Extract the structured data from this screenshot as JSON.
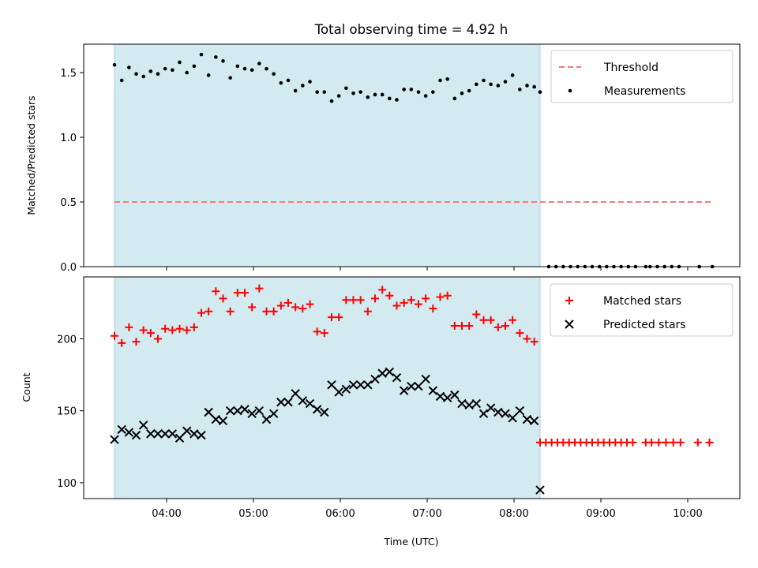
{
  "chart_data": [
    {
      "type": "scatter",
      "title": "Total observing time = 4.92 h",
      "xlabel": "",
      "ylabel": "Matched/Predicted stars",
      "ylim": [
        0,
        1.72
      ],
      "yticks": [
        "0.0",
        "0.5",
        "1.0",
        "1.5"
      ],
      "shaded_interval": [
        "03:24",
        "08:18"
      ],
      "shade_color": "#d3eaf0",
      "legend_position": "top-right",
      "threshold": {
        "name": "Threshold",
        "value": 0.5,
        "color": "#f47a7a",
        "x_range": [
          "03:24",
          "10:18"
        ]
      },
      "series": [
        {
          "name": "Measurements",
          "color": "#000000",
          "marker": "dot",
          "points": [
            [
              "03:24",
              1.56
            ],
            [
              "03:29",
              1.44
            ],
            [
              "03:34",
              1.54
            ],
            [
              "03:39",
              1.49
            ],
            [
              "03:44",
              1.47
            ],
            [
              "03:49",
              1.51
            ],
            [
              "03:54",
              1.49
            ],
            [
              "03:59",
              1.53
            ],
            [
              "04:04",
              1.52
            ],
            [
              "04:09",
              1.58
            ],
            [
              "04:14",
              1.5
            ],
            [
              "04:19",
              1.55
            ],
            [
              "04:24",
              1.64
            ],
            [
              "04:29",
              1.48
            ],
            [
              "04:34",
              1.62
            ],
            [
              "04:39",
              1.59
            ],
            [
              "04:44",
              1.46
            ],
            [
              "04:49",
              1.55
            ],
            [
              "04:54",
              1.53
            ],
            [
              "04:59",
              1.52
            ],
            [
              "05:04",
              1.57
            ],
            [
              "05:09",
              1.53
            ],
            [
              "05:14",
              1.49
            ],
            [
              "05:19",
              1.42
            ],
            [
              "05:24",
              1.44
            ],
            [
              "05:29",
              1.36
            ],
            [
              "05:34",
              1.4
            ],
            [
              "05:39",
              1.43
            ],
            [
              "05:44",
              1.35
            ],
            [
              "05:49",
              1.35
            ],
            [
              "05:54",
              1.28
            ],
            [
              "05:59",
              1.32
            ],
            [
              "06:04",
              1.38
            ],
            [
              "06:09",
              1.34
            ],
            [
              "06:14",
              1.35
            ],
            [
              "06:19",
              1.31
            ],
            [
              "06:24",
              1.33
            ],
            [
              "06:29",
              1.33
            ],
            [
              "06:34",
              1.3
            ],
            [
              "06:39",
              1.29
            ],
            [
              "06:44",
              1.37
            ],
            [
              "06:49",
              1.37
            ],
            [
              "06:54",
              1.35
            ],
            [
              "06:59",
              1.32
            ],
            [
              "07:04",
              1.35
            ],
            [
              "07:09",
              1.44
            ],
            [
              "07:14",
              1.45
            ],
            [
              "07:19",
              1.3
            ],
            [
              "07:24",
              1.34
            ],
            [
              "07:29",
              1.36
            ],
            [
              "07:34",
              1.41
            ],
            [
              "07:39",
              1.44
            ],
            [
              "07:44",
              1.41
            ],
            [
              "07:49",
              1.4
            ],
            [
              "07:54",
              1.43
            ],
            [
              "07:59",
              1.48
            ],
            [
              "08:04",
              1.37
            ],
            [
              "08:09",
              1.4
            ],
            [
              "08:14",
              1.39
            ],
            [
              "08:18",
              1.35
            ],
            [
              "08:24",
              0
            ],
            [
              "08:29",
              0
            ],
            [
              "08:34",
              0
            ],
            [
              "08:39",
              0
            ],
            [
              "08:44",
              0
            ],
            [
              "08:49",
              0
            ],
            [
              "08:54",
              0
            ],
            [
              "08:59",
              0
            ],
            [
              "09:04",
              0
            ],
            [
              "09:09",
              0
            ],
            [
              "09:14",
              0
            ],
            [
              "09:19",
              0
            ],
            [
              "09:24",
              0
            ],
            [
              "09:31",
              0
            ],
            [
              "09:34",
              0
            ],
            [
              "09:39",
              0
            ],
            [
              "09:44",
              0
            ],
            [
              "09:49",
              0
            ],
            [
              "09:54",
              0
            ],
            [
              "10:08",
              0
            ],
            [
              "10:17",
              0
            ]
          ]
        }
      ]
    },
    {
      "type": "scatter",
      "title": "",
      "xlabel": "Time (UTC)",
      "ylabel": "Count",
      "ylim": [
        89,
        243
      ],
      "yticks": [
        "100",
        "150",
        "200"
      ],
      "xticks": [
        "04:00",
        "05:00",
        "06:00",
        "07:00",
        "08:00",
        "09:00",
        "10:00"
      ],
      "shaded_interval": [
        "03:24",
        "08:18"
      ],
      "shade_color": "#d3eaf0",
      "legend_position": "top-right",
      "series": [
        {
          "name": "Matched stars",
          "color": "#ff0000",
          "marker": "plus",
          "points": [
            [
              "03:24",
              202
            ],
            [
              "03:29",
              197
            ],
            [
              "03:34",
              208
            ],
            [
              "03:39",
              198
            ],
            [
              "03:44",
              206
            ],
            [
              "03:49",
              204
            ],
            [
              "03:54",
              200
            ],
            [
              "03:59",
              207
            ],
            [
              "04:04",
              206
            ],
            [
              "04:09",
              207
            ],
            [
              "04:14",
              206
            ],
            [
              "04:19",
              208
            ],
            [
              "04:24",
              218
            ],
            [
              "04:29",
              219
            ],
            [
              "04:34",
              233
            ],
            [
              "04:39",
              228
            ],
            [
              "04:44",
              219
            ],
            [
              "04:49",
              232
            ],
            [
              "04:54",
              232
            ],
            [
              "04:59",
              222
            ],
            [
              "05:04",
              235
            ],
            [
              "05:09",
              219
            ],
            [
              "05:14",
              219
            ],
            [
              "05:19",
              223
            ],
            [
              "05:24",
              225
            ],
            [
              "05:29",
              222
            ],
            [
              "05:34",
              221
            ],
            [
              "05:39",
              224
            ],
            [
              "05:44",
              205
            ],
            [
              "05:49",
              204
            ],
            [
              "05:54",
              215
            ],
            [
              "05:59",
              215
            ],
            [
              "06:04",
              227
            ],
            [
              "06:09",
              227
            ],
            [
              "06:14",
              227
            ],
            [
              "06:19",
              219
            ],
            [
              "06:24",
              228
            ],
            [
              "06:29",
              234
            ],
            [
              "06:34",
              230
            ],
            [
              "06:39",
              223
            ],
            [
              "06:44",
              225
            ],
            [
              "06:49",
              227
            ],
            [
              "06:54",
              224
            ],
            [
              "06:59",
              228
            ],
            [
              "07:04",
              221
            ],
            [
              "07:09",
              229
            ],
            [
              "07:14",
              230
            ],
            [
              "07:19",
              209
            ],
            [
              "07:24",
              209
            ],
            [
              "07:29",
              209
            ],
            [
              "07:34",
              217
            ],
            [
              "07:39",
              213
            ],
            [
              "07:44",
              213
            ],
            [
              "07:49",
              208
            ],
            [
              "07:54",
              209
            ],
            [
              "07:59",
              213
            ],
            [
              "08:04",
              204
            ],
            [
              "08:09",
              200
            ],
            [
              "08:14",
              198
            ],
            [
              "08:18",
              128
            ],
            [
              "08:22",
              128
            ],
            [
              "08:26",
              128
            ],
            [
              "08:30",
              128
            ],
            [
              "08:34",
              128
            ],
            [
              "08:38",
              128
            ],
            [
              "08:42",
              128
            ],
            [
              "08:46",
              128
            ],
            [
              "08:50",
              128
            ],
            [
              "08:54",
              128
            ],
            [
              "08:58",
              128
            ],
            [
              "09:02",
              128
            ],
            [
              "09:06",
              128
            ],
            [
              "09:10",
              128
            ],
            [
              "09:14",
              128
            ],
            [
              "09:18",
              128
            ],
            [
              "09:22",
              128
            ],
            [
              "09:31",
              128
            ],
            [
              "09:35",
              128
            ],
            [
              "09:40",
              128
            ],
            [
              "09:45",
              128
            ],
            [
              "09:50",
              128
            ],
            [
              "09:55",
              128
            ],
            [
              "10:07",
              128
            ],
            [
              "10:15",
              128
            ]
          ]
        },
        {
          "name": "Predicted stars",
          "color": "#000000",
          "marker": "x",
          "points": [
            [
              "03:24",
              130
            ],
            [
              "03:29",
              137
            ],
            [
              "03:34",
              135
            ],
            [
              "03:39",
              133
            ],
            [
              "03:44",
              140
            ],
            [
              "03:49",
              134
            ],
            [
              "03:54",
              134
            ],
            [
              "03:59",
              134
            ],
            [
              "04:04",
              134
            ],
            [
              "04:09",
              131
            ],
            [
              "04:14",
              136
            ],
            [
              "04:19",
              134
            ],
            [
              "04:24",
              133
            ],
            [
              "04:29",
              149
            ],
            [
              "04:34",
              144
            ],
            [
              "04:39",
              143
            ],
            [
              "04:44",
              150
            ],
            [
              "04:49",
              150
            ],
            [
              "04:54",
              151
            ],
            [
              "04:59",
              148
            ],
            [
              "05:04",
              150
            ],
            [
              "05:09",
              144
            ],
            [
              "05:14",
              148
            ],
            [
              "05:19",
              156
            ],
            [
              "05:24",
              156
            ],
            [
              "05:29",
              162
            ],
            [
              "05:34",
              157
            ],
            [
              "05:39",
              155
            ],
            [
              "05:44",
              151
            ],
            [
              "05:49",
              149
            ],
            [
              "05:54",
              168
            ],
            [
              "05:59",
              163
            ],
            [
              "06:04",
              165
            ],
            [
              "06:09",
              168
            ],
            [
              "06:14",
              168
            ],
            [
              "06:19",
              168
            ],
            [
              "06:24",
              172
            ],
            [
              "06:29",
              176
            ],
            [
              "06:34",
              177
            ],
            [
              "06:39",
              173
            ],
            [
              "06:44",
              164
            ],
            [
              "06:49",
              167
            ],
            [
              "06:54",
              167
            ],
            [
              "06:59",
              172
            ],
            [
              "07:04",
              164
            ],
            [
              "07:09",
              160
            ],
            [
              "07:14",
              159
            ],
            [
              "07:19",
              161
            ],
            [
              "07:24",
              155
            ],
            [
              "07:29",
              154
            ],
            [
              "07:34",
              155
            ],
            [
              "07:39",
              148
            ],
            [
              "07:44",
              152
            ],
            [
              "07:49",
              149
            ],
            [
              "07:54",
              148
            ],
            [
              "07:59",
              145
            ],
            [
              "08:04",
              150
            ],
            [
              "08:09",
              144
            ],
            [
              "08:14",
              143
            ],
            [
              "08:18",
              95
            ]
          ]
        }
      ]
    }
  ]
}
